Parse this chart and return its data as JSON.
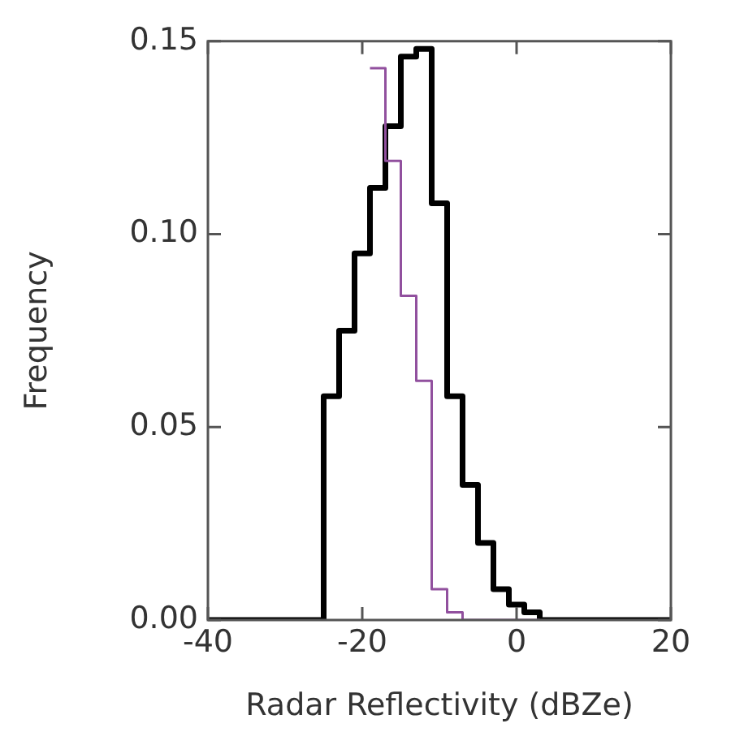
{
  "chart_data": {
    "type": "histogram",
    "xlabel": "Radar Reflectivity (dBZe)",
    "ylabel": "Frequency",
    "bins": [
      -40,
      -25,
      -23,
      -21,
      -19,
      -17,
      -15,
      -13,
      -11,
      -9,
      -7,
      -5,
      -3,
      -1,
      1,
      3,
      20
    ],
    "series": [
      {
        "color": "#000000",
        "values": [
          0,
          0.058,
          0.075,
          0.095,
          0.112,
          0.128,
          0.146,
          0.148,
          0.108,
          0.058,
          0.035,
          0.02,
          0.008,
          0.004,
          0.002,
          0
        ]
      },
      {
        "color": "#91509e",
        "bins": [
          -19,
          -17,
          -15,
          -13,
          -11,
          -9,
          -7,
          -5,
          -3,
          -1,
          1,
          3
        ],
        "values": [
          0.143,
          0.119,
          0.084,
          0.062,
          0.008,
          0.002,
          0,
          0,
          0,
          0,
          0
        ]
      }
    ],
    "xlim": [
      -40,
      20
    ],
    "xticks": [
      -40,
      -20,
      0,
      20
    ],
    "ylim": [
      0,
      0.15
    ],
    "yticks": [
      {
        "value": 0,
        "label": "0.00"
      },
      {
        "value": 0.05,
        "label": "0.05"
      },
      {
        "value": 0.1,
        "label": "0.10"
      },
      {
        "value": 0.15,
        "label": "0.15"
      }
    ],
    "grid": false,
    "legend": false
  }
}
